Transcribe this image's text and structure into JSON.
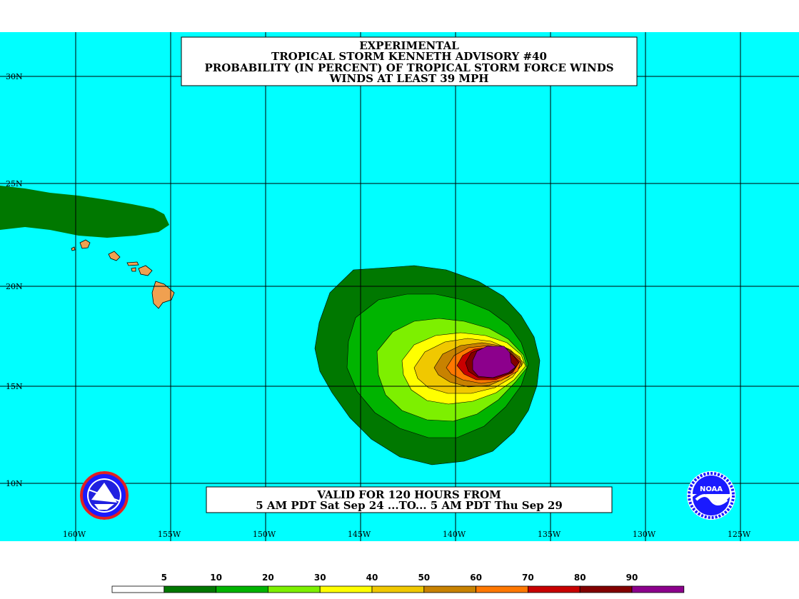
{
  "title": {
    "line1": "EXPERIMENTAL",
    "line2": "TROPICAL STORM KENNETH ADVISORY #40",
    "line3": "PROBABILITY (IN PERCENT) OF TROPICAL STORM FORCE WINDS",
    "line4": "WINDS AT LEAST 39 MPH"
  },
  "valid": {
    "line1": "VALID FOR 120 HOURS FROM",
    "line2": "5 AM PDT Sat Sep 24 ...TO... 5 AM PDT Thu Sep 29"
  },
  "lat_labels": [
    "30N",
    "25N",
    "20N",
    "15N",
    "10N"
  ],
  "lon_labels": [
    "160W",
    "155W",
    "150W",
    "145W",
    "140W",
    "135W",
    "130W",
    "125W"
  ],
  "legend": {
    "labels": [
      "5",
      "10",
      "20",
      "30",
      "40",
      "50",
      "60",
      "70",
      "80",
      "90"
    ],
    "colors": [
      "#ffffff",
      "#007800",
      "#00b400",
      "#7df000",
      "#ffff00",
      "#f0c800",
      "#c88200",
      "#ff7800",
      "#c80000",
      "#820000",
      "#8c008c"
    ]
  },
  "colors": {
    "ocean": "#00ffff",
    "land": "#007800",
    "hawaii": "#f0a050"
  },
  "logos": {
    "left": "nws-logo-icon",
    "right": "noaa-logo-icon",
    "noaa_text": "NOAA"
  }
}
